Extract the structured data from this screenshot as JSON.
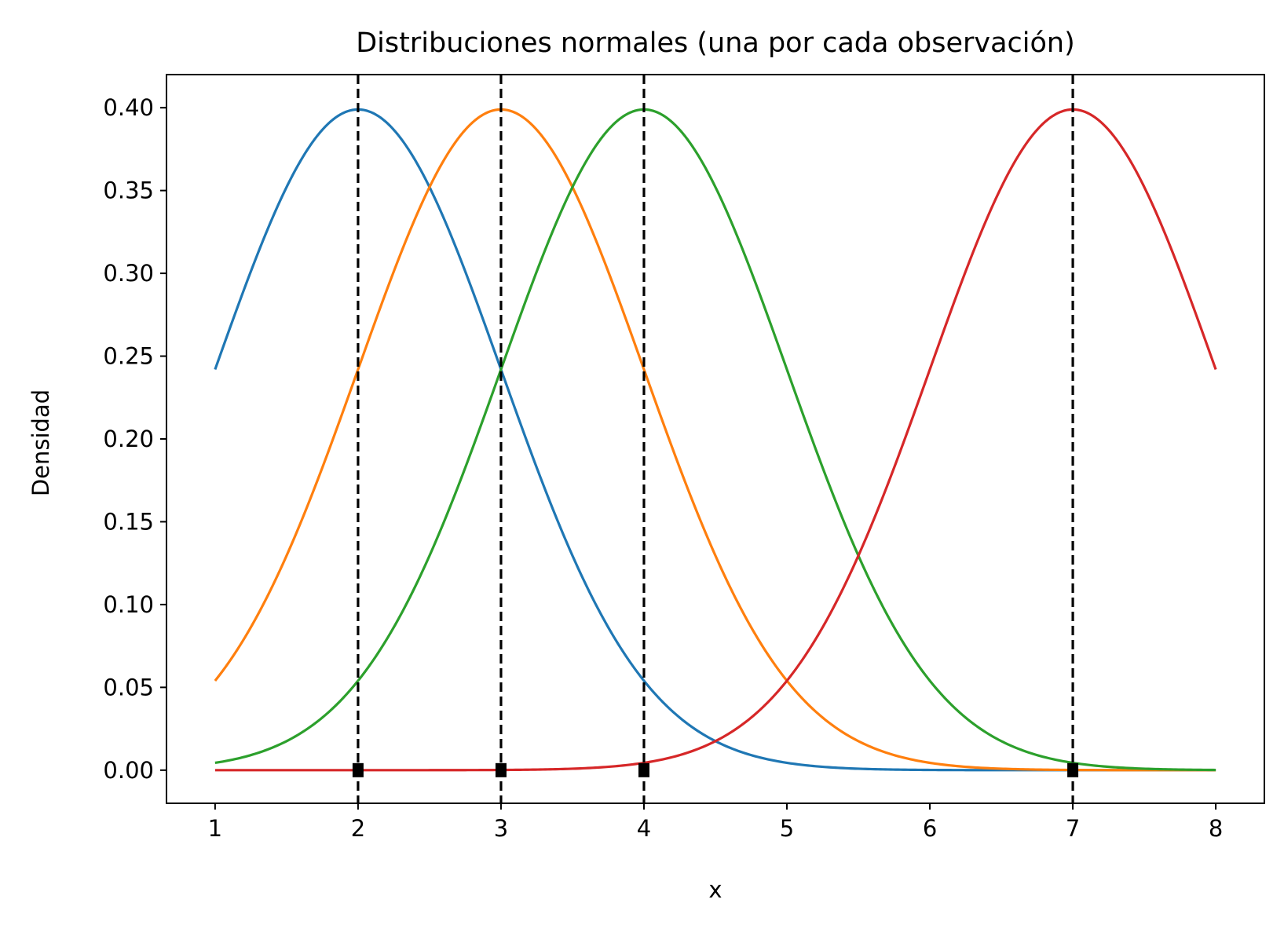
{
  "chart_data": {
    "type": "line",
    "title": "Distribuciones normales (una por cada observación)",
    "xlabel": "x",
    "ylabel": "Densidad",
    "xlim": [
      0.66,
      8.34
    ],
    "ylim": [
      -0.02,
      0.42
    ],
    "xticks": [
      1,
      2,
      3,
      4,
      5,
      6,
      7,
      8
    ],
    "xtick_labels": [
      "1",
      "2",
      "3",
      "4",
      "5",
      "6",
      "7",
      "8"
    ],
    "yticks": [
      0.0,
      0.05,
      0.1,
      0.15,
      0.2,
      0.25,
      0.3,
      0.35,
      0.4
    ],
    "ytick_labels": [
      "0.00",
      "0.05",
      "0.10",
      "0.15",
      "0.20",
      "0.25",
      "0.30",
      "0.35",
      "0.40"
    ],
    "grid": false,
    "legend": "none",
    "x_range": [
      1,
      8
    ],
    "sigma": 1,
    "series": [
      {
        "mean": 2,
        "color": "#1f77b4"
      },
      {
        "mean": 3,
        "color": "#ff7f0e"
      },
      {
        "mean": 4,
        "color": "#2ca02c"
      },
      {
        "mean": 7,
        "color": "#d62728"
      }
    ],
    "observations": [
      2,
      3,
      4,
      7
    ],
    "observation_line_style": "dashed",
    "observation_line_color": "#000000",
    "observation_marker": "square"
  }
}
